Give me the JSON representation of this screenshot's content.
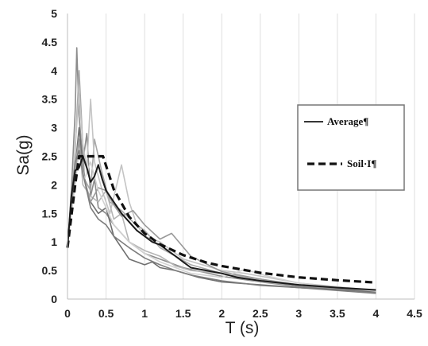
{
  "chart_data": {
    "type": "line",
    "xlabel": "T (s)",
    "ylabel": "Sa(g)",
    "xlim": [
      0,
      4.5
    ],
    "ylim": [
      0,
      5
    ],
    "xticks": [
      "0",
      "0.5",
      "1",
      "1.5",
      "2",
      "2.5",
      "3",
      "3.5",
      "4",
      "4.5"
    ],
    "yticks": [
      "0",
      "0.5",
      "1",
      "1.5",
      "2",
      "2.5",
      "3",
      "3.5",
      "4",
      "4.5",
      "5"
    ],
    "grid": "vertical",
    "legend_position": "right",
    "legend": {
      "average": "Average¶",
      "soil": "Soil·I¶"
    },
    "series": [
      {
        "name": "Average¶",
        "style": "solid",
        "color": "#1a1a1a",
        "x": [
          0,
          0.05,
          0.1,
          0.15,
          0.2,
          0.25,
          0.3,
          0.35,
          0.4,
          0.45,
          0.5,
          0.6,
          0.7,
          0.8,
          0.9,
          1.0,
          1.1,
          1.2,
          1.3,
          1.4,
          1.5,
          1.6,
          1.8,
          2.0,
          2.2,
          2.5,
          3.0,
          3.5,
          4.0
        ],
        "y": [
          0.9,
          1.8,
          2.25,
          2.3,
          2.5,
          2.3,
          2.05,
          2.15,
          2.35,
          2.1,
          1.9,
          1.7,
          1.5,
          1.35,
          1.2,
          1.1,
          1.0,
          0.95,
          0.85,
          0.75,
          0.65,
          0.55,
          0.5,
          0.45,
          0.38,
          0.32,
          0.25,
          0.2,
          0.16
        ]
      },
      {
        "name": "Soil·I¶",
        "style": "dashed",
        "color": "#111111",
        "x": [
          0,
          0.1,
          0.15,
          0.46,
          0.6,
          0.8,
          1.0,
          1.2,
          1.5,
          1.8,
          2.0,
          2.5,
          3.0,
          3.5,
          4.0
        ],
        "y": [
          0.9,
          2.0,
          2.5,
          2.5,
          1.92,
          1.44,
          1.15,
          0.96,
          0.77,
          0.64,
          0.58,
          0.46,
          0.38,
          0.33,
          0.29
        ]
      },
      {
        "style": "record",
        "color": "#8c8c8c",
        "x": [
          0,
          0.05,
          0.1,
          0.12,
          0.15,
          0.2,
          0.25,
          0.3,
          0.35,
          0.4,
          0.5,
          0.6,
          0.8,
          1.0,
          1.2,
          1.5,
          2.0,
          2.5,
          3.0,
          4.0
        ],
        "y": [
          0.9,
          1.9,
          3.3,
          4.4,
          3.2,
          2.4,
          2.9,
          1.8,
          2.1,
          1.6,
          1.5,
          1.3,
          1.0,
          0.8,
          0.7,
          0.55,
          0.4,
          0.3,
          0.22,
          0.12
        ]
      },
      {
        "style": "record",
        "color": "#a8a8a8",
        "x": [
          0,
          0.05,
          0.1,
          0.15,
          0.18,
          0.22,
          0.3,
          0.35,
          0.45,
          0.55,
          0.7,
          0.85,
          1.0,
          1.2,
          1.4,
          1.6,
          2.0,
          2.5,
          3.0,
          4.0
        ],
        "y": [
          0.9,
          1.6,
          2.6,
          4.0,
          3.2,
          2.1,
          1.9,
          2.8,
          2.2,
          1.7,
          1.55,
          1.35,
          1.2,
          0.9,
          0.75,
          0.6,
          0.45,
          0.35,
          0.25,
          0.14
        ]
      },
      {
        "style": "record",
        "color": "#c4c4c4",
        "x": [
          0,
          0.05,
          0.1,
          0.15,
          0.2,
          0.25,
          0.3,
          0.35,
          0.45,
          0.55,
          0.7,
          0.8,
          0.9,
          1.0,
          1.2,
          1.5,
          2.0,
          2.3,
          3.0,
          4.0
        ],
        "y": [
          0.9,
          1.5,
          2.7,
          3.6,
          2.7,
          2.3,
          3.5,
          2.4,
          1.9,
          1.5,
          2.35,
          1.7,
          1.3,
          1.1,
          1.0,
          0.7,
          0.5,
          0.45,
          0.28,
          0.15
        ]
      },
      {
        "style": "record",
        "color": "#6f6f6f",
        "x": [
          0,
          0.05,
          0.1,
          0.15,
          0.2,
          0.25,
          0.3,
          0.4,
          0.5,
          0.6,
          0.7,
          0.8,
          1.0,
          1.1,
          1.2,
          1.4,
          1.7,
          2.0,
          2.5,
          3.0,
          4.0
        ],
        "y": [
          0.9,
          1.8,
          2.3,
          3.0,
          2.3,
          1.9,
          1.7,
          1.5,
          1.6,
          1.1,
          0.9,
          0.7,
          0.6,
          0.65,
          0.55,
          0.5,
          0.38,
          0.3,
          0.25,
          0.2,
          0.13
        ]
      },
      {
        "style": "record",
        "color": "#b5b5b5",
        "x": [
          0,
          0.05,
          0.1,
          0.15,
          0.2,
          0.3,
          0.4,
          0.5,
          0.6,
          0.7,
          0.8,
          1.0,
          1.2,
          1.4,
          1.6,
          2.0,
          2.5,
          3.0,
          4.0
        ],
        "y": [
          0.9,
          1.7,
          2.3,
          2.8,
          2.0,
          1.8,
          1.7,
          1.9,
          1.4,
          1.5,
          1.0,
          0.85,
          0.75,
          0.58,
          0.5,
          0.45,
          0.3,
          0.25,
          0.15
        ]
      },
      {
        "style": "record",
        "color": "#999999",
        "x": [
          0,
          0.05,
          0.1,
          0.15,
          0.2,
          0.3,
          0.4,
          0.5,
          0.6,
          0.7,
          0.85,
          1.0,
          1.2,
          1.35,
          1.6,
          2.0,
          2.5,
          3.0,
          4.0
        ],
        "y": [
          0.9,
          1.6,
          2.1,
          2.8,
          2.2,
          1.7,
          1.95,
          1.9,
          1.65,
          1.45,
          1.55,
          1.3,
          1.05,
          1.15,
          0.75,
          0.48,
          0.35,
          0.24,
          0.14
        ]
      },
      {
        "style": "record",
        "color": "#d2d2d2",
        "x": [
          0,
          0.05,
          0.1,
          0.15,
          0.22,
          0.3,
          0.4,
          0.5,
          0.6,
          0.8,
          1.0,
          1.2,
          1.4,
          1.6,
          2.0,
          2.3,
          2.6,
          3.0,
          4.0
        ],
        "y": [
          0.9,
          1.5,
          2.0,
          2.6,
          2.1,
          2.4,
          1.9,
          1.6,
          1.3,
          1.0,
          0.8,
          0.65,
          0.55,
          0.45,
          0.38,
          0.52,
          0.4,
          0.28,
          0.14
        ]
      },
      {
        "style": "record",
        "color": "#7d7d7d",
        "x": [
          0,
          0.05,
          0.1,
          0.15,
          0.2,
          0.3,
          0.4,
          0.5,
          0.6,
          0.8,
          1.0,
          1.2,
          1.4,
          1.6,
          2.0,
          2.5,
          3.0,
          4.0
        ],
        "y": [
          0.9,
          1.8,
          2.4,
          2.6,
          2.2,
          1.6,
          1.4,
          1.3,
          1.1,
          0.9,
          0.72,
          0.6,
          0.5,
          0.42,
          0.32,
          0.24,
          0.2,
          0.1
        ]
      }
    ]
  }
}
